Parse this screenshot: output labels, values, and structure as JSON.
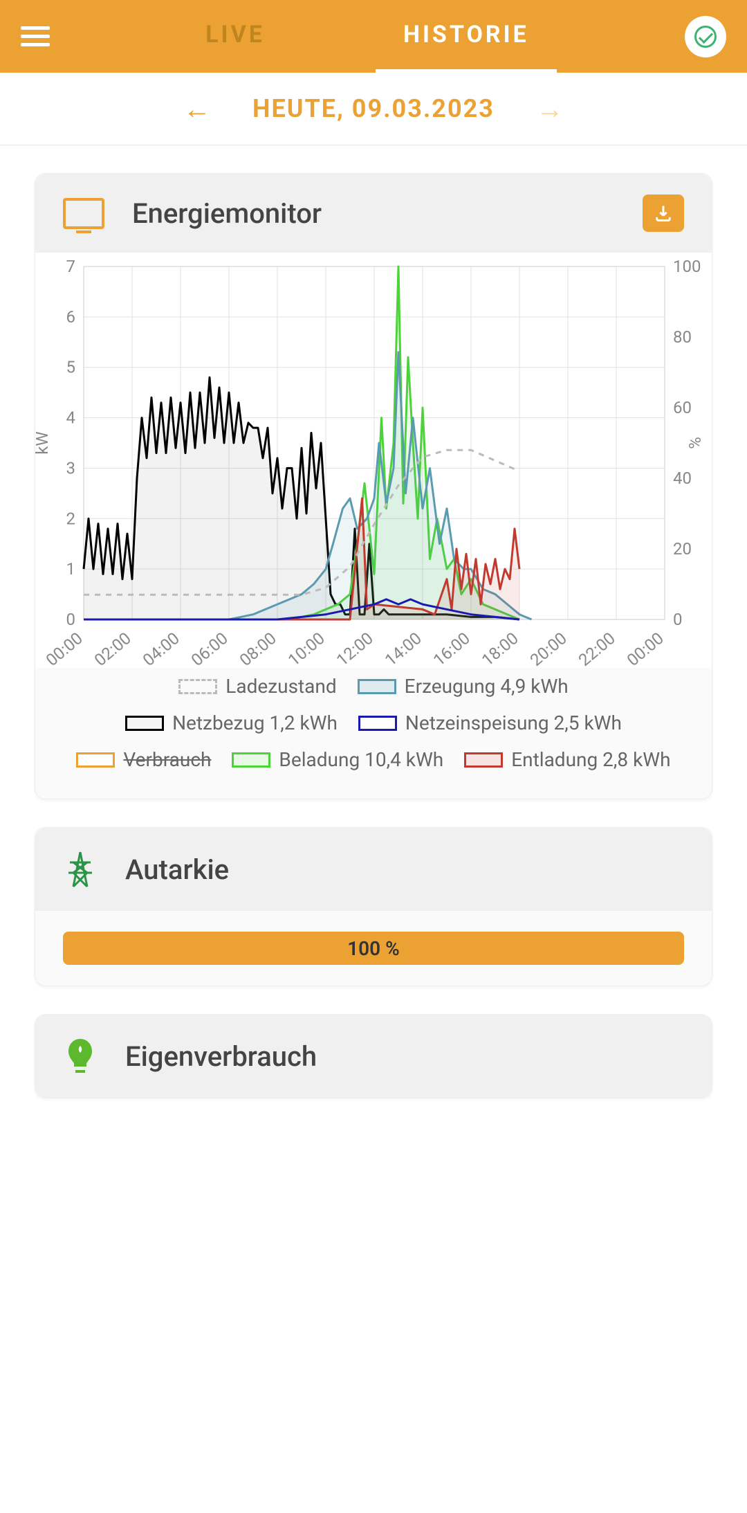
{
  "header": {
    "tabs": {
      "live": "LIVE",
      "historie": "HISTORIE"
    },
    "active_tab": "historie"
  },
  "date_nav": {
    "label": "HEUTE, 09.03.2023"
  },
  "monitor": {
    "title": "Energiemonitor",
    "chart": {
      "type": "line",
      "x_labels": [
        "00:00",
        "02:00",
        "04:00",
        "06:00",
        "08:00",
        "10:00",
        "12:00",
        "14:00",
        "16:00",
        "18:00",
        "20:00",
        "22:00",
        "00:00"
      ],
      "y_left": {
        "label": "kW",
        "min": 0,
        "max": 7,
        "step": 1
      },
      "y_right": {
        "label": "%",
        "min": 0,
        "max": 100,
        "step": 20
      },
      "grid_color": "#e0e0e0",
      "bg": "#ffffff",
      "axis_text_color": "#888888",
      "series": {
        "ladezustand": {
          "color": "#bbbbbb",
          "dash": "8,8",
          "width": 3,
          "fill": "none",
          "points": [
            [
              0,
              7
            ],
            [
              1,
              7
            ],
            [
              2,
              7
            ],
            [
              3,
              7
            ],
            [
              4,
              7
            ],
            [
              5,
              7
            ],
            [
              6,
              7
            ],
            [
              7,
              7
            ],
            [
              8,
              7
            ],
            [
              9,
              7
            ],
            [
              10,
              9
            ],
            [
              11,
              15
            ],
            [
              12,
              27
            ],
            [
              13,
              38
            ],
            [
              14,
              46
            ],
            [
              15,
              48
            ],
            [
              16,
              48
            ],
            [
              17,
              45
            ],
            [
              18,
              42
            ]
          ]
        },
        "erzeugung": {
          "color": "#5a9bb0",
          "width": 3,
          "fill": "#5a9bb01a",
          "points": [
            [
              0,
              0
            ],
            [
              6,
              0
            ],
            [
              7,
              0.1
            ],
            [
              8,
              0.3
            ],
            [
              8.5,
              0.4
            ],
            [
              9,
              0.5
            ],
            [
              9.5,
              0.7
            ],
            [
              10,
              1.0
            ],
            [
              10.3,
              1.5
            ],
            [
              10.7,
              2.2
            ],
            [
              11,
              2.4
            ],
            [
              11.3,
              1.8
            ],
            [
              11.7,
              2.0
            ],
            [
              12,
              2.4
            ],
            [
              12.2,
              3.5
            ],
            [
              12.5,
              2.3
            ],
            [
              12.8,
              3.0
            ],
            [
              13,
              5.3
            ],
            [
              13.3,
              2.5
            ],
            [
              13.6,
              4.0
            ],
            [
              14,
              2.2
            ],
            [
              14.3,
              3.0
            ],
            [
              14.7,
              1.5
            ],
            [
              15,
              2.2
            ],
            [
              15.3,
              1.2
            ],
            [
              15.7,
              1.0
            ],
            [
              16,
              1.0
            ],
            [
              16.5,
              0.6
            ],
            [
              17,
              0.5
            ],
            [
              17.5,
              0.3
            ],
            [
              18,
              0.1
            ],
            [
              18.5,
              0
            ]
          ]
        },
        "netzbezug": {
          "color": "#000000",
          "width": 3,
          "fill": "#0000000d",
          "points": [
            [
              0,
              1.0
            ],
            [
              0.2,
              2.0
            ],
            [
              0.4,
              1.0
            ],
            [
              0.6,
              1.9
            ],
            [
              0.8,
              0.9
            ],
            [
              1.0,
              1.8
            ],
            [
              1.2,
              0.9
            ],
            [
              1.4,
              1.9
            ],
            [
              1.6,
              0.8
            ],
            [
              1.8,
              1.7
            ],
            [
              2.0,
              0.8
            ],
            [
              2.2,
              2.8
            ],
            [
              2.4,
              4.0
            ],
            [
              2.6,
              3.2
            ],
            [
              2.8,
              4.4
            ],
            [
              3.0,
              3.3
            ],
            [
              3.2,
              4.3
            ],
            [
              3.4,
              3.3
            ],
            [
              3.6,
              4.4
            ],
            [
              3.8,
              3.4
            ],
            [
              4.0,
              4.3
            ],
            [
              4.2,
              3.3
            ],
            [
              4.4,
              4.5
            ],
            [
              4.6,
              3.4
            ],
            [
              4.8,
              4.5
            ],
            [
              5.0,
              3.5
            ],
            [
              5.2,
              4.8
            ],
            [
              5.4,
              3.6
            ],
            [
              5.6,
              4.6
            ],
            [
              5.8,
              3.5
            ],
            [
              6.0,
              4.5
            ],
            [
              6.2,
              3.5
            ],
            [
              6.4,
              4.3
            ],
            [
              6.6,
              3.5
            ],
            [
              6.8,
              3.9
            ],
            [
              7.0,
              3.8
            ],
            [
              7.2,
              3.8
            ],
            [
              7.4,
              3.2
            ],
            [
              7.6,
              3.8
            ],
            [
              7.8,
              2.5
            ],
            [
              8.0,
              3.2
            ],
            [
              8.2,
              2.2
            ],
            [
              8.4,
              3.0
            ],
            [
              8.6,
              3.0
            ],
            [
              8.8,
              2.0
            ],
            [
              9.0,
              3.4
            ],
            [
              9.2,
              2.1
            ],
            [
              9.4,
              3.7
            ],
            [
              9.6,
              2.6
            ],
            [
              9.8,
              3.5
            ],
            [
              10.0,
              2.0
            ],
            [
              10.2,
              0.5
            ],
            [
              10.4,
              0.3
            ],
            [
              10.6,
              0.3
            ],
            [
              10.8,
              0.1
            ],
            [
              11.0,
              0.1
            ],
            [
              11.2,
              1.8
            ],
            [
              11.4,
              0.1
            ],
            [
              11.6,
              0.1
            ],
            [
              11.8,
              1.5
            ],
            [
              12.0,
              0.1
            ],
            [
              12.2,
              0.1
            ],
            [
              12.4,
              0.2
            ],
            [
              12.6,
              0.1
            ],
            [
              12.8,
              0.1
            ],
            [
              13.0,
              0.1
            ],
            [
              14.0,
              0.1
            ],
            [
              15.0,
              0.1
            ],
            [
              16.0,
              0.05
            ],
            [
              17.0,
              0.05
            ],
            [
              18.0,
              0
            ]
          ]
        },
        "netzeinspeisung": {
          "color": "#1a1ab0",
          "width": 3,
          "fill": "none",
          "points": [
            [
              0,
              0
            ],
            [
              8,
              0
            ],
            [
              9,
              0.05
            ],
            [
              10,
              0.1
            ],
            [
              10.5,
              0.15
            ],
            [
              11,
              0.2
            ],
            [
              12,
              0.3
            ],
            [
              12.5,
              0.4
            ],
            [
              13,
              0.3
            ],
            [
              13.5,
              0.4
            ],
            [
              14,
              0.3
            ],
            [
              15,
              0.2
            ],
            [
              16,
              0.1
            ],
            [
              17,
              0.05
            ],
            [
              18,
              0
            ]
          ]
        },
        "beladung": {
          "color": "#4dd33a",
          "width": 3,
          "fill": "#4dd33a1a",
          "points": [
            [
              0,
              0
            ],
            [
              8,
              0
            ],
            [
              9,
              0.05
            ],
            [
              9.5,
              0.1
            ],
            [
              10,
              0.2
            ],
            [
              10.5,
              0.3
            ],
            [
              11,
              0.5
            ],
            [
              11.3,
              1.5
            ],
            [
              11.6,
              2.7
            ],
            [
              12,
              0.9
            ],
            [
              12.3,
              4.0
            ],
            [
              12.5,
              2.2
            ],
            [
              12.8,
              3.5
            ],
            [
              13,
              7.0
            ],
            [
              13.2,
              2.3
            ],
            [
              13.4,
              5.2
            ],
            [
              13.6,
              3.5
            ],
            [
              13.8,
              2.0
            ],
            [
              14,
              4.2
            ],
            [
              14.3,
              1.2
            ],
            [
              14.6,
              2.0
            ],
            [
              15,
              1.0
            ],
            [
              15.3,
              1.2
            ],
            [
              15.6,
              0.5
            ],
            [
              16,
              0.8
            ],
            [
              16.5,
              0.3
            ],
            [
              17,
              0.2
            ],
            [
              17.5,
              0.1
            ],
            [
              18,
              0
            ]
          ]
        },
        "entladung": {
          "color": "#c13a2f",
          "width": 3,
          "fill": "#c13a2f1a",
          "points": [
            [
              0,
              0
            ],
            [
              11,
              0
            ],
            [
              11.5,
              2.4
            ],
            [
              11.7,
              0.2
            ],
            [
              12,
              0.3
            ],
            [
              14,
              0.2
            ],
            [
              14.5,
              0.1
            ],
            [
              15,
              0.8
            ],
            [
              15.2,
              0.2
            ],
            [
              15.4,
              1.4
            ],
            [
              15.6,
              0.6
            ],
            [
              15.8,
              1.3
            ],
            [
              16,
              0.5
            ],
            [
              16.2,
              1.2
            ],
            [
              16.4,
              0.3
            ],
            [
              16.6,
              1.1
            ],
            [
              16.8,
              0.7
            ],
            [
              17,
              1.2
            ],
            [
              17.2,
              0.6
            ],
            [
              17.4,
              1.0
            ],
            [
              17.6,
              0.8
            ],
            [
              17.8,
              1.8
            ],
            [
              18,
              1.0
            ]
          ]
        }
      }
    },
    "legend": [
      {
        "key": "ladezustand",
        "label": "Ladezustand",
        "border": "#bbbbbb",
        "fill": "transparent",
        "dashed": true
      },
      {
        "key": "erzeugung",
        "label": "Erzeugung 4,9 kWh",
        "border": "#5a9bb0",
        "fill": "#dfecef"
      },
      {
        "key": "netzbezug",
        "label": "Netzbezug 1,2 kWh",
        "border": "#000000",
        "fill": "#f5f5f5"
      },
      {
        "key": "netzeinspeisung",
        "label": "Netzeinspeisung 2,5 kWh",
        "border": "#1a1ab0",
        "fill": "#ffffff"
      },
      {
        "key": "verbrauch",
        "label": "Verbrauch",
        "border": "#eba233",
        "fill": "#ffffff",
        "strike": true
      },
      {
        "key": "beladung",
        "label": "Beladung 10,4 kWh",
        "border": "#4dd33a",
        "fill": "#e8f9e5"
      },
      {
        "key": "entladung",
        "label": "Entladung 2,8 kWh",
        "border": "#c13a2f",
        "fill": "#f7e4e2"
      }
    ]
  },
  "autarkie": {
    "title": "Autarkie",
    "pct_label": "100 %",
    "pct": 100,
    "bar_color": "#eba233"
  },
  "eigenverbrauch": {
    "title": "Eigenverbrauch"
  },
  "colors": {
    "primary": "#eba233",
    "green": "#3cb371"
  }
}
